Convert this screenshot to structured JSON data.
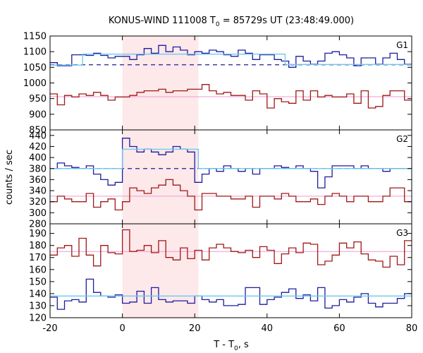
{
  "chart_data": {
    "type": "line",
    "title": {
      "prefix": "KONUS-WIND 111008 T",
      "sub": "0",
      "suffix": " = 85729s UT (23:48:49.000)"
    },
    "xlabel": {
      "prefix": "T - T",
      "sub": "0",
      "suffix": ", s"
    },
    "ylabel": "counts / sec",
    "xlim": [
      -20,
      80
    ],
    "x_ticks": [
      -20,
      0,
      20,
      40,
      60,
      80
    ],
    "x_tick_labels": [
      "-20",
      "0",
      "20",
      "40",
      "60",
      "80"
    ],
    "grid": false,
    "shaded_interval": {
      "x0": 0,
      "x1": 21,
      "color": "#fde8ea"
    },
    "colors": {
      "hard": "#1c1ca0",
      "soft": "#a01818",
      "fit": "#6ec8f0",
      "background_soft": "#f09ad2",
      "background_hard": "#1c1ca0"
    },
    "bin_edges": [
      -20,
      -18,
      -16,
      -14,
      -12,
      -10,
      -8,
      -6,
      -4,
      -2,
      0,
      2,
      4,
      6,
      8,
      10,
      12,
      14,
      16,
      18,
      20,
      22,
      24,
      26,
      28,
      30,
      32,
      34,
      36,
      38,
      40,
      42,
      44,
      46,
      48,
      50,
      52,
      54,
      56,
      58,
      60,
      62,
      64,
      66,
      68,
      70,
      72,
      74,
      76,
      78,
      80
    ],
    "panels": [
      {
        "name": "G1",
        "ylim": [
          850,
          1150
        ],
        "y_ticks": [
          850,
          900,
          950,
          1000,
          1050,
          1100,
          1150
        ],
        "y_tick_labels": [
          "850",
          "900",
          "950",
          "1000",
          "1050",
          "1100",
          "1150"
        ],
        "series": [
          {
            "role": "hard",
            "values": [
              1065,
              1055,
              1055,
              1090,
              1090,
              1088,
              1095,
              1088,
              1080,
              1085,
              1085,
              1075,
              1090,
              1110,
              1095,
              1120,
              1100,
              1115,
              1105,
              1090,
              1100,
              1095,
              1105,
              1100,
              1090,
              1085,
              1105,
              1095,
              1075,
              1090,
              1090,
              1075,
              1070,
              1050,
              1085,
              1070,
              1060,
              1070,
              1095,
              1100,
              1090,
              1080,
              1055,
              1080,
              1080,
              1060,
              1080,
              1095,
              1075,
              1060
            ]
          },
          {
            "role": "soft",
            "values": [
              965,
              930,
              960,
              955,
              965,
              960,
              970,
              960,
              945,
              955,
              955,
              960,
              970,
              975,
              975,
              980,
              970,
              975,
              975,
              980,
              980,
              995,
              975,
              965,
              970,
              960,
              960,
              945,
              975,
              965,
              920,
              950,
              940,
              935,
              975,
              945,
              975,
              955,
              960,
              955,
              955,
              965,
              935,
              975,
              920,
              925,
              960,
              975,
              975,
              945
            ]
          },
          {
            "role": "fit",
            "steps": [
              {
                "x0": -20,
                "x1": -11,
                "y": 1057
              },
              {
                "x0": -11,
                "x1": 45,
                "y": 1092
              },
              {
                "x0": 45,
                "x1": 80,
                "y": 1059
              }
            ]
          },
          {
            "role": "background_hard",
            "y": 1058
          },
          {
            "role": "background_soft",
            "y": 956
          }
        ]
      },
      {
        "name": "G2",
        "ylim": [
          280,
          450
        ],
        "y_ticks": [
          280,
          300,
          320,
          340,
          360,
          380,
          400,
          420,
          440
        ],
        "y_tick_labels": [
          "280",
          "300",
          "320",
          "340",
          "360",
          "380",
          "400",
          "420",
          "440"
        ],
        "series": [
          {
            "role": "hard",
            "values": [
              380,
              390,
              385,
              382,
              380,
              385,
              370,
              360,
              350,
              355,
              435,
              420,
              410,
              415,
              410,
              405,
              410,
              420,
              415,
              410,
              355,
              370,
              380,
              375,
              385,
              380,
              375,
              380,
              370,
              380,
              380,
              385,
              382,
              380,
              385,
              380,
              375,
              345,
              365,
              385,
              385,
              385,
              380,
              385,
              380,
              380,
              375,
              380,
              380,
              380
            ]
          },
          {
            "role": "soft",
            "values": [
              320,
              330,
              325,
              320,
              320,
              335,
              310,
              320,
              325,
              305,
              320,
              345,
              340,
              335,
              345,
              350,
              360,
              350,
              340,
              330,
              305,
              335,
              335,
              330,
              330,
              325,
              325,
              330,
              310,
              330,
              330,
              325,
              335,
              330,
              320,
              320,
              325,
              315,
              330,
              335,
              330,
              320,
              330,
              330,
              320,
              320,
              330,
              345,
              345,
              320
            ]
          },
          {
            "role": "fit",
            "steps": [
              {
                "x0": -20,
                "x1": 0,
                "y": 380
              },
              {
                "x0": 0,
                "x1": 21,
                "y": 415
              },
              {
                "x0": 21,
                "x1": 80,
                "y": 380
              }
            ]
          },
          {
            "role": "background_hard",
            "y": 380
          },
          {
            "role": "background_soft",
            "y": 330
          }
        ]
      },
      {
        "name": "G3",
        "ylim": [
          120,
          198
        ],
        "y_ticks": [
          120,
          130,
          140,
          150,
          160,
          170,
          180,
          190
        ],
        "y_tick_labels": [
          "120",
          "130",
          "140",
          "150",
          "160",
          "170",
          "180",
          "190"
        ],
        "series": [
          {
            "role": "hard",
            "values": [
              137,
              127,
              134,
              135,
              133,
              152,
              141,
              138,
              137,
              139,
              132,
              133,
              142,
              132,
              145,
              135,
              133,
              134,
              134,
              132,
              138,
              135,
              133,
              135,
              130,
              130,
              131,
              145,
              145,
              131,
              135,
              137,
              141,
              144,
              136,
              139,
              134,
              145,
              128,
              130,
              135,
              133,
              137,
              140,
              132,
              129,
              132,
              132,
              136,
              140
            ]
          },
          {
            "role": "soft",
            "values": [
              172,
              178,
              180,
              171,
              186,
              172,
              163,
              180,
              174,
              173,
              193,
              175,
              176,
              180,
              174,
              184,
              170,
              168,
              178,
              169,
              176,
              168,
              178,
              181,
              178,
              175,
              174,
              176,
              170,
              179,
              176,
              165,
              173,
              178,
              174,
              182,
              181,
              164,
              167,
              172,
              182,
              178,
              183,
              173,
              168,
              167,
              162,
              171,
              164,
              184
            ]
          },
          {
            "role": "fit",
            "steps": [
              {
                "x0": -20,
                "x1": 80,
                "y": 138
              }
            ]
          },
          {
            "role": "background_soft",
            "y": 175
          }
        ]
      }
    ]
  }
}
